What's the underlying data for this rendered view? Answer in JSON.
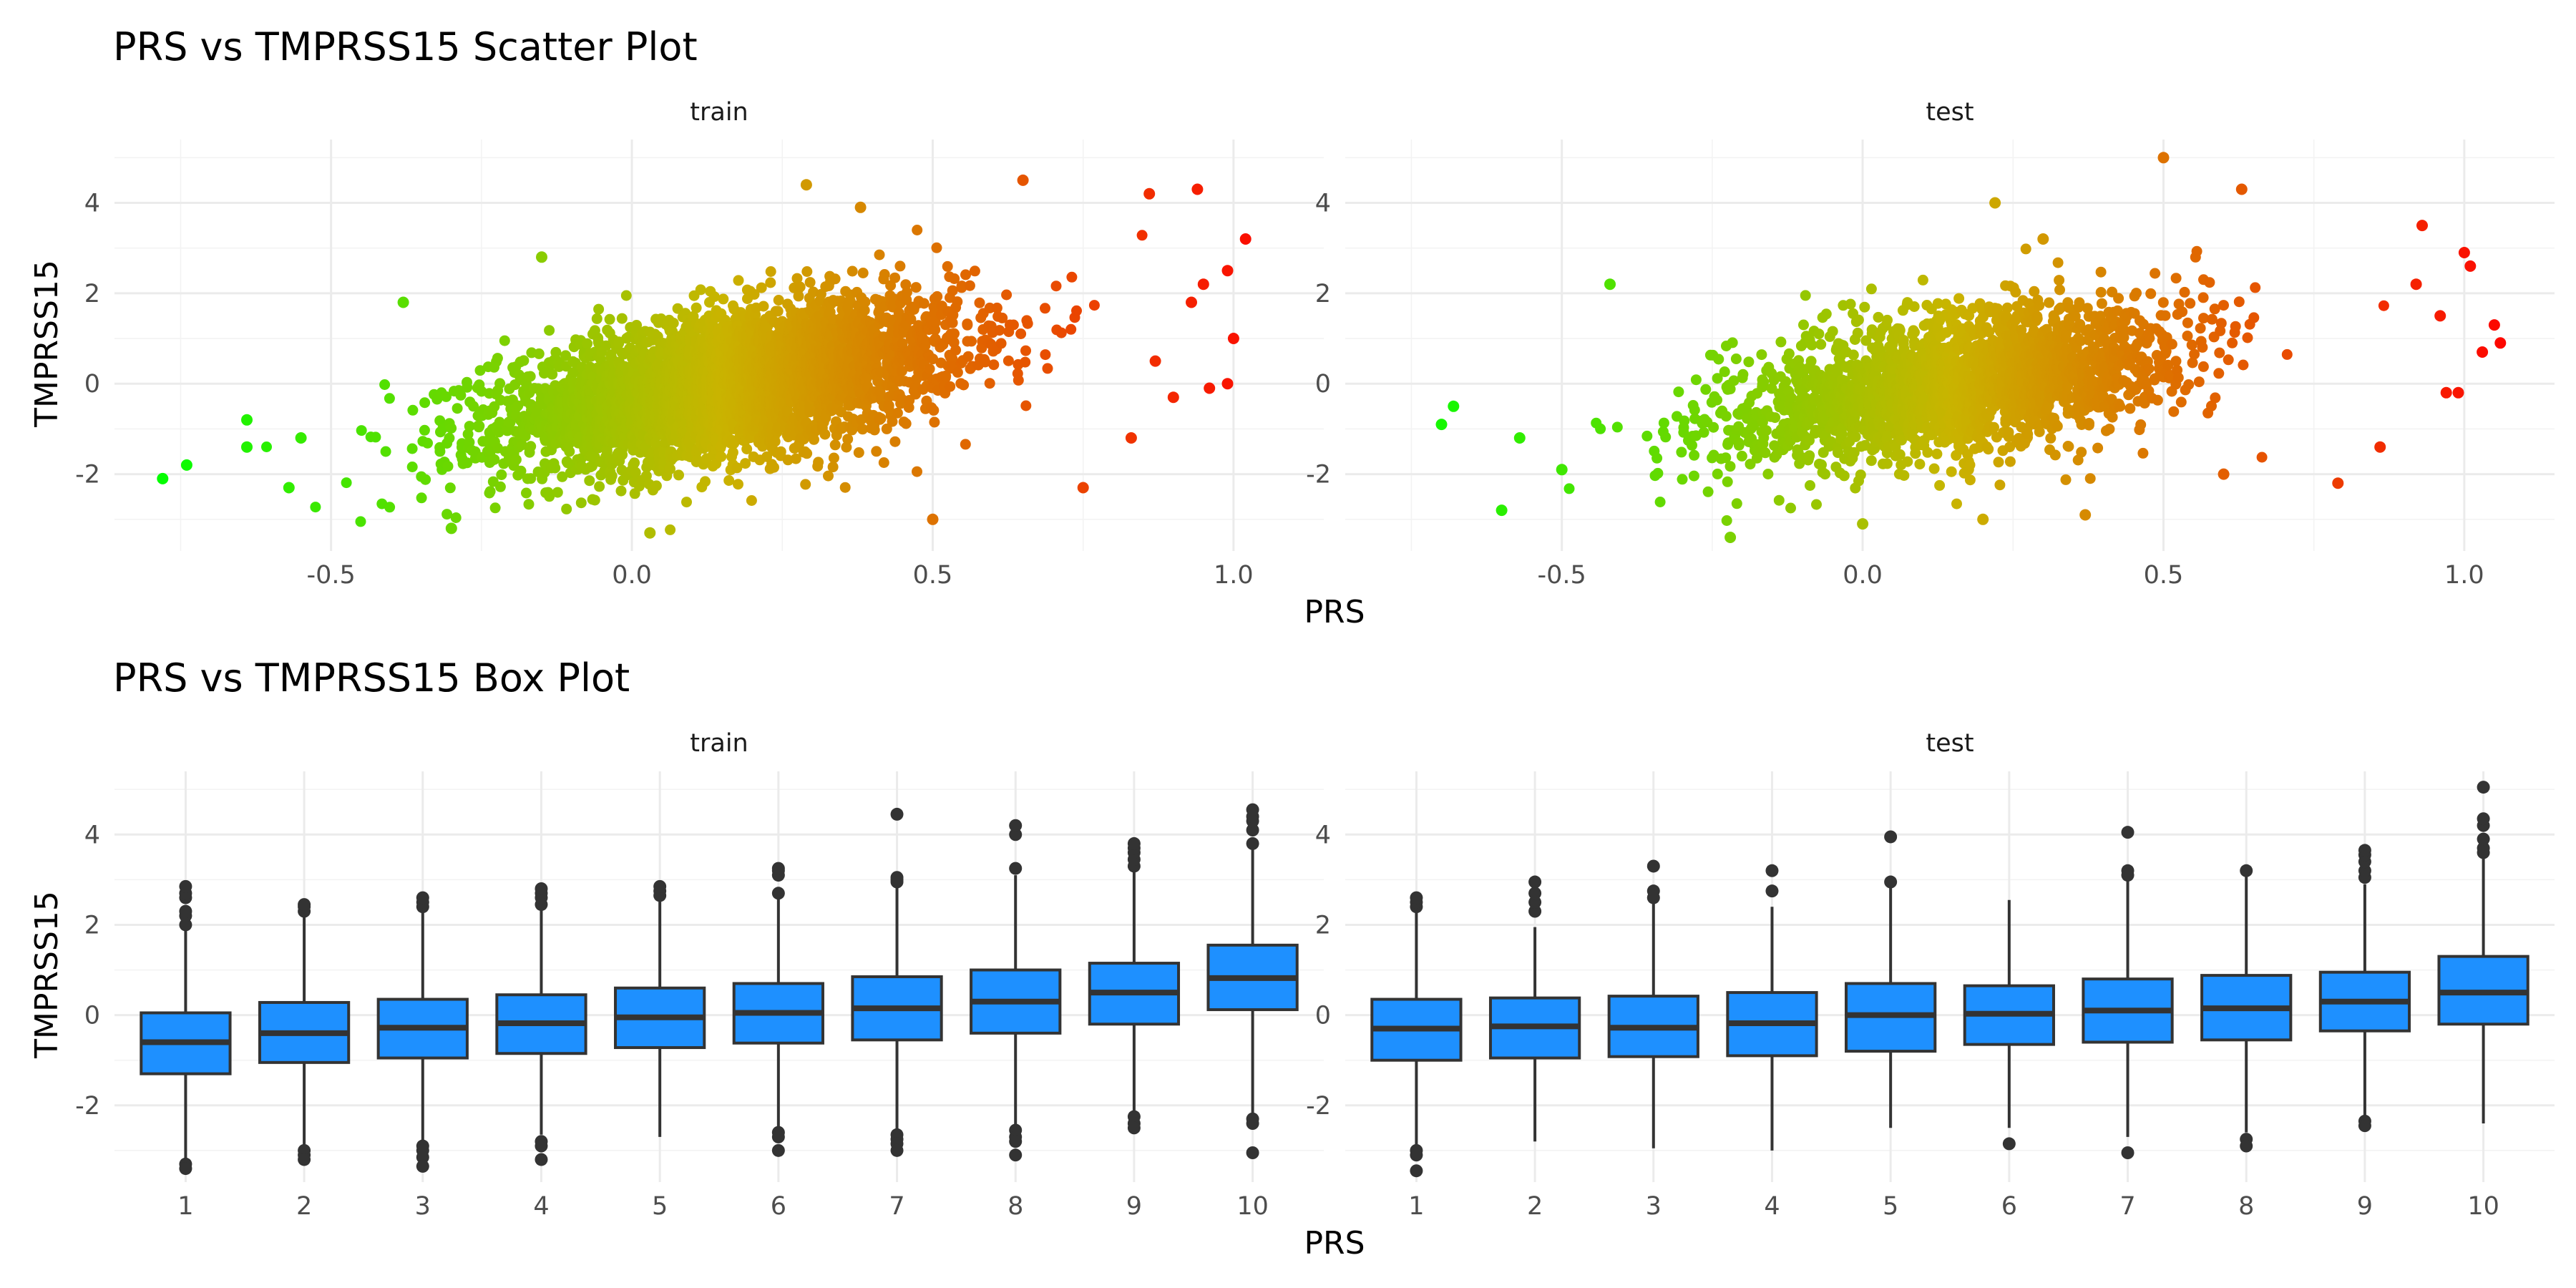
{
  "colors": {
    "low": "#00ff00",
    "mid": "#c9b400",
    "high": "#ff0000",
    "box_fill": "#1e90ff",
    "box_line": "#333333"
  },
  "chart_data": [
    {
      "type": "scatter",
      "title": "PRS vs TMPRSS15 Scatter Plot",
      "xlabel": "PRS",
      "ylabel": "TMPRSS15",
      "color_scale": "gradient green-to-red by PRS",
      "grid": true,
      "panels": [
        {
          "name": "train",
          "xlim": [
            -0.86,
            1.15
          ],
          "ylim": [
            -3.7,
            5.4
          ],
          "x_ticks": [
            -0.5,
            0.0,
            0.5,
            1.0
          ],
          "y_ticks": [
            -2,
            0,
            2,
            4
          ],
          "x_tick_labels": [
            "-0.5",
            "0.0",
            "0.5",
            "1.0"
          ],
          "y_tick_labels": [
            "-2",
            "0",
            "2",
            "4"
          ],
          "cloud": {
            "n": 3800,
            "x_mean": 0.16,
            "x_sd": 0.19,
            "slope": 2.3,
            "resid_sd": 0.78
          },
          "points": [
            {
              "x": -0.78,
              "y": -2.1
            },
            {
              "x": -0.74,
              "y": -1.8
            },
            {
              "x": -0.64,
              "y": -0.8
            },
            {
              "x": -0.64,
              "y": -1.4
            },
            {
              "x": -0.57,
              "y": -2.3
            },
            {
              "x": -0.55,
              "y": -1.2
            },
            {
              "x": -0.38,
              "y": 1.8
            },
            {
              "x": -0.3,
              "y": -3.2
            },
            {
              "x": -0.15,
              "y": 2.8
            },
            {
              "x": 0.03,
              "y": -3.3
            },
            {
              "x": 0.29,
              "y": 4.4
            },
            {
              "x": 0.38,
              "y": 3.9
            },
            {
              "x": 0.5,
              "y": -3.0
            },
            {
              "x": 0.65,
              "y": 4.5
            },
            {
              "x": 0.75,
              "y": -2.3
            },
            {
              "x": 0.86,
              "y": 4.2
            },
            {
              "x": 0.94,
              "y": 4.3
            },
            {
              "x": 0.95,
              "y": 2.2
            },
            {
              "x": 0.99,
              "y": 2.5
            },
            {
              "x": 1.0,
              "y": 1.0
            },
            {
              "x": 1.02,
              "y": 3.2
            },
            {
              "x": 0.99,
              "y": 0.0
            },
            {
              "x": 0.96,
              "y": -0.1
            },
            {
              "x": 0.9,
              "y": -0.3
            },
            {
              "x": 0.83,
              "y": -1.2
            },
            {
              "x": 0.87,
              "y": 0.5
            },
            {
              "x": 0.93,
              "y": 1.8
            }
          ]
        },
        {
          "name": "test",
          "xlim": [
            -0.86,
            1.15
          ],
          "ylim": [
            -3.7,
            5.4
          ],
          "x_ticks": [
            -0.5,
            0.0,
            0.5,
            1.0
          ],
          "y_ticks": [
            -2,
            0,
            2,
            4
          ],
          "x_tick_labels": [
            "-0.5",
            "0.0",
            "0.5",
            "1.0"
          ],
          "y_tick_labels": [
            "-2",
            "0",
            "2",
            "4"
          ],
          "cloud": {
            "n": 2200,
            "x_mean": 0.15,
            "x_sd": 0.19,
            "slope": 1.9,
            "resid_sd": 0.78
          },
          "points": [
            {
              "x": -0.68,
              "y": -0.5
            },
            {
              "x": -0.7,
              "y": -0.9
            },
            {
              "x": -0.6,
              "y": -2.8
            },
            {
              "x": -0.57,
              "y": -1.2
            },
            {
              "x": -0.5,
              "y": -1.9
            },
            {
              "x": -0.42,
              "y": 2.2
            },
            {
              "x": -0.22,
              "y": -3.4
            },
            {
              "x": 0.0,
              "y": -3.1
            },
            {
              "x": 0.3,
              "y": 3.2
            },
            {
              "x": 0.22,
              "y": 4.0
            },
            {
              "x": 0.5,
              "y": 5.0
            },
            {
              "x": 0.63,
              "y": 4.3
            },
            {
              "x": 0.93,
              "y": 3.5
            },
            {
              "x": 1.0,
              "y": 2.9
            },
            {
              "x": 1.01,
              "y": 2.6
            },
            {
              "x": 1.05,
              "y": 1.3
            },
            {
              "x": 1.06,
              "y": 0.9
            },
            {
              "x": 1.03,
              "y": 0.7
            },
            {
              "x": 0.99,
              "y": -0.2
            },
            {
              "x": 0.97,
              "y": -0.2
            },
            {
              "x": 0.86,
              "y": -1.4
            },
            {
              "x": 0.79,
              "y": -2.2
            },
            {
              "x": 0.6,
              "y": -2.0
            },
            {
              "x": 0.37,
              "y": -2.9
            },
            {
              "x": 0.2,
              "y": -3.0
            },
            {
              "x": 0.96,
              "y": 1.5
            },
            {
              "x": 0.92,
              "y": 2.2
            }
          ]
        }
      ]
    },
    {
      "type": "box",
      "title": "PRS vs TMPRSS15 Box Plot",
      "xlabel": "PRS",
      "ylabel": "TMPRSS15",
      "grid": true,
      "panels": [
        {
          "name": "train",
          "categories": [
            "1",
            "2",
            "3",
            "4",
            "5",
            "6",
            "7",
            "8",
            "9",
            "10"
          ],
          "ylim": [
            -3.7,
            5.4
          ],
          "y_ticks": [
            -2,
            0,
            2,
            4
          ],
          "y_tick_labels": [
            "-2",
            "0",
            "2",
            "4"
          ],
          "boxes": [
            {
              "q1": -1.3,
              "median": -0.6,
              "q3": 0.05,
              "lower": -3.2,
              "upper": 1.95,
              "outliers": [
                2.0,
                2.2,
                2.3,
                2.6,
                2.7,
                2.85,
                -3.3,
                -3.4
              ]
            },
            {
              "q1": -1.05,
              "median": -0.4,
              "q3": 0.28,
              "lower": -2.9,
              "upper": 2.2,
              "outliers": [
                2.3,
                2.4,
                2.45,
                -3.0,
                -3.1,
                -3.2
              ]
            },
            {
              "q1": -0.95,
              "median": -0.28,
              "q3": 0.35,
              "lower": -2.8,
              "upper": 2.3,
              "outliers": [
                2.4,
                2.5,
                2.6,
                -2.9,
                -3.0,
                -3.15,
                -3.35
              ]
            },
            {
              "q1": -0.85,
              "median": -0.18,
              "q3": 0.45,
              "lower": -2.65,
              "upper": 2.35,
              "outliers": [
                2.45,
                2.6,
                2.7,
                2.8,
                -2.8,
                -2.9,
                -3.2
              ]
            },
            {
              "q1": -0.72,
              "median": -0.05,
              "q3": 0.6,
              "lower": -2.7,
              "upper": 2.55,
              "outliers": [
                2.65,
                2.75,
                2.85
              ]
            },
            {
              "q1": -0.62,
              "median": 0.05,
              "q3": 0.7,
              "lower": -2.5,
              "upper": 2.65,
              "outliers": [
                2.7,
                3.1,
                3.2,
                3.25,
                -2.6,
                -2.7,
                -3.0
              ]
            },
            {
              "q1": -0.55,
              "median": 0.15,
              "q3": 0.85,
              "lower": -2.55,
              "upper": 2.85,
              "outliers": [
                2.95,
                3.0,
                3.05,
                4.45,
                -2.65,
                -2.75,
                -2.85,
                -3.0
              ]
            },
            {
              "q1": -0.4,
              "median": 0.3,
              "q3": 1.0,
              "lower": -2.45,
              "upper": 3.1,
              "outliers": [
                3.25,
                4.0,
                4.2,
                -2.55,
                -2.7,
                -2.8,
                -3.1
              ]
            },
            {
              "q1": -0.2,
              "median": 0.5,
              "q3": 1.15,
              "lower": -2.15,
              "upper": 3.2,
              "outliers": [
                3.3,
                3.45,
                3.6,
                3.7,
                3.8,
                -2.25,
                -2.4,
                -2.5
              ]
            },
            {
              "q1": 0.12,
              "median": 0.82,
              "q3": 1.55,
              "lower": -2.25,
              "upper": 3.8,
              "outliers": [
                3.8,
                4.1,
                4.3,
                4.4,
                4.55,
                -2.3,
                -2.4,
                -3.05
              ]
            }
          ]
        },
        {
          "name": "test",
          "categories": [
            "1",
            "2",
            "3",
            "4",
            "5",
            "6",
            "7",
            "8",
            "9",
            "10"
          ],
          "ylim": [
            -3.7,
            5.4
          ],
          "y_ticks": [
            -2,
            0,
            2,
            4
          ],
          "y_tick_labels": [
            "-2",
            "0",
            "2",
            "4"
          ],
          "boxes": [
            {
              "q1": -1.0,
              "median": -0.3,
              "q3": 0.35,
              "lower": -2.95,
              "upper": 2.3,
              "outliers": [
                2.4,
                2.5,
                2.6,
                -3.0,
                -3.1,
                -3.45
              ]
            },
            {
              "q1": -0.95,
              "median": -0.25,
              "q3": 0.38,
              "lower": -2.8,
              "upper": 1.95,
              "outliers": [
                2.3,
                2.5,
                2.7,
                2.95
              ]
            },
            {
              "q1": -0.92,
              "median": -0.28,
              "q3": 0.42,
              "lower": -2.95,
              "upper": 2.5,
              "outliers": [
                2.6,
                2.75,
                3.3
              ]
            },
            {
              "q1": -0.9,
              "median": -0.18,
              "q3": 0.5,
              "lower": -3.0,
              "upper": 2.4,
              "outliers": [
                2.75,
                3.2
              ]
            },
            {
              "q1": -0.8,
              "median": 0.0,
              "q3": 0.7,
              "lower": -2.5,
              "upper": 2.9,
              "outliers": [
                2.95,
                3.95
              ]
            },
            {
              "q1": -0.65,
              "median": 0.03,
              "q3": 0.65,
              "lower": -2.5,
              "upper": 2.55,
              "outliers": [
                -2.85
              ]
            },
            {
              "q1": -0.6,
              "median": 0.1,
              "q3": 0.8,
              "lower": -2.7,
              "upper": 3.0,
              "outliers": [
                3.1,
                3.2,
                4.05,
                -3.05
              ]
            },
            {
              "q1": -0.55,
              "median": 0.15,
              "q3": 0.88,
              "lower": -2.6,
              "upper": 3.1,
              "outliers": [
                3.2,
                -2.75,
                -2.9
              ]
            },
            {
              "q1": -0.35,
              "median": 0.3,
              "q3": 0.95,
              "lower": -2.3,
              "upper": 2.9,
              "outliers": [
                3.05,
                3.2,
                3.4,
                3.55,
                3.65,
                -2.35,
                -2.45
              ]
            },
            {
              "q1": -0.2,
              "median": 0.5,
              "q3": 1.3,
              "lower": -2.4,
              "upper": 3.5,
              "outliers": [
                3.6,
                3.7,
                3.9,
                4.2,
                4.35,
                5.05
              ]
            }
          ]
        }
      ]
    }
  ]
}
